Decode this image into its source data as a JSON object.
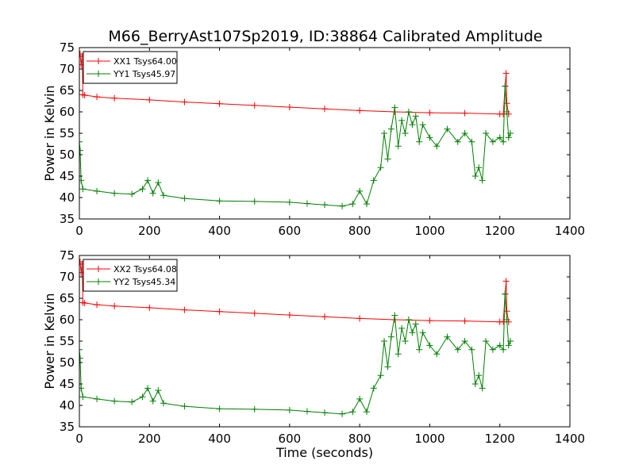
{
  "chart_data": {
    "title": "M66_BerryAst107Sp2019, ID:38864 Calibrated Amplitude",
    "colors": {
      "xx": "#ff0000",
      "yy": "#007f00"
    },
    "panels": [
      {
        "type": "line",
        "xlabel": "",
        "ylabel": "Power in Kelvin",
        "xlim": [
          0,
          1400
        ],
        "ylim": [
          35,
          75
        ],
        "xticks": [
          0,
          200,
          400,
          600,
          800,
          1000,
          1200,
          1400
        ],
        "yticks": [
          35,
          40,
          45,
          50,
          55,
          60,
          65,
          70,
          75
        ],
        "grid": false,
        "legend_position": "top-left",
        "series": [
          {
            "name": "XX1 Tsys64.00",
            "color": "#ff0000",
            "marker": "+",
            "x": [
              0,
              2,
              5,
              8,
              10,
              15,
              50,
              100,
              200,
              300,
              400,
              500,
              600,
              700,
              800,
              900,
              1000,
              1100,
              1200,
              1210,
              1215,
              1218,
              1220,
              1225
            ],
            "y": [
              73,
              73.5,
              71,
              73,
              64,
              63.9,
              63.5,
              63.2,
              62.8,
              62.3,
              61.9,
              61.5,
              61.1,
              60.7,
              60.3,
              60.0,
              59.8,
              59.7,
              59.5,
              59.5,
              66,
              69,
              62,
              59.5
            ]
          },
          {
            "name": "YY1 Tsys45.97",
            "color": "#007f00",
            "marker": "+",
            "x": [
              0,
              2,
              5,
              10,
              50,
              100,
              150,
              180,
              195,
              210,
              225,
              240,
              300,
              400,
              500,
              600,
              650,
              700,
              750,
              780,
              800,
              820,
              840,
              860,
              870,
              880,
              890,
              900,
              910,
              920,
              930,
              940,
              950,
              960,
              970,
              980,
              1000,
              1020,
              1050,
              1080,
              1100,
              1120,
              1130,
              1140,
              1150,
              1160,
              1180,
              1200,
              1210,
              1215,
              1220,
              1225,
              1230
            ],
            "y": [
              53,
              51,
              44,
              42,
              41.5,
              41,
              40.8,
              42,
              44,
              41,
              43.5,
              40.5,
              39.8,
              39.2,
              39.1,
              38.9,
              38.6,
              38.3,
              38.0,
              38.5,
              41.5,
              38.5,
              44,
              47,
              55,
              49,
              56,
              61,
              52,
              58,
              55,
              60,
              57,
              59,
              53,
              57,
              54,
              52,
              56,
              53,
              55,
              53,
              45,
              47,
              44,
              55,
              53,
              54,
              53,
              66,
              60,
              54,
              55
            ]
          }
        ]
      },
      {
        "type": "line",
        "xlabel": "Time (seconds)",
        "ylabel": "Power in Kelvin",
        "xlim": [
          0,
          1400
        ],
        "ylim": [
          35,
          75
        ],
        "xticks": [
          0,
          200,
          400,
          600,
          800,
          1000,
          1200,
          1400
        ],
        "yticks": [
          35,
          40,
          45,
          50,
          55,
          60,
          65,
          70,
          75
        ],
        "grid": false,
        "legend_position": "top-left",
        "series": [
          {
            "name": "XX2 Tsys64.08",
            "color": "#ff0000",
            "marker": "+",
            "x": [
              0,
              2,
              5,
              8,
              10,
              15,
              50,
              100,
              200,
              300,
              400,
              500,
              600,
              700,
              800,
              900,
              1000,
              1100,
              1200,
              1210,
              1215,
              1218,
              1220,
              1225
            ],
            "y": [
              73,
              73.5,
              71,
              73,
              64,
              63.9,
              63.5,
              63.2,
              62.8,
              62.3,
              61.9,
              61.5,
              61.1,
              60.7,
              60.3,
              60.0,
              59.8,
              59.7,
              59.5,
              59.5,
              66,
              69,
              62,
              59.5
            ]
          },
          {
            "name": "YY2 Tsys45.34",
            "color": "#007f00",
            "marker": "+",
            "x": [
              0,
              2,
              5,
              10,
              50,
              100,
              150,
              180,
              195,
              210,
              225,
              240,
              300,
              400,
              500,
              600,
              650,
              700,
              750,
              780,
              800,
              820,
              840,
              860,
              870,
              880,
              890,
              900,
              910,
              920,
              930,
              940,
              950,
              960,
              970,
              980,
              1000,
              1020,
              1050,
              1080,
              1100,
              1120,
              1130,
              1140,
              1150,
              1160,
              1180,
              1200,
              1210,
              1215,
              1220,
              1225,
              1230
            ],
            "y": [
              53,
              51,
              44,
              42,
              41.5,
              41,
              40.8,
              42,
              44,
              41,
              43.5,
              40.5,
              39.8,
              39.2,
              39.1,
              38.9,
              38.6,
              38.3,
              38.0,
              38.5,
              41.5,
              38.5,
              44,
              47,
              55,
              49,
              56,
              61,
              52,
              58,
              55,
              60,
              57,
              59,
              53,
              57,
              54,
              52,
              56,
              53,
              55,
              53,
              45,
              47,
              44,
              55,
              53,
              54,
              53,
              66,
              60,
              54,
              55
            ]
          }
        ]
      }
    ]
  }
}
